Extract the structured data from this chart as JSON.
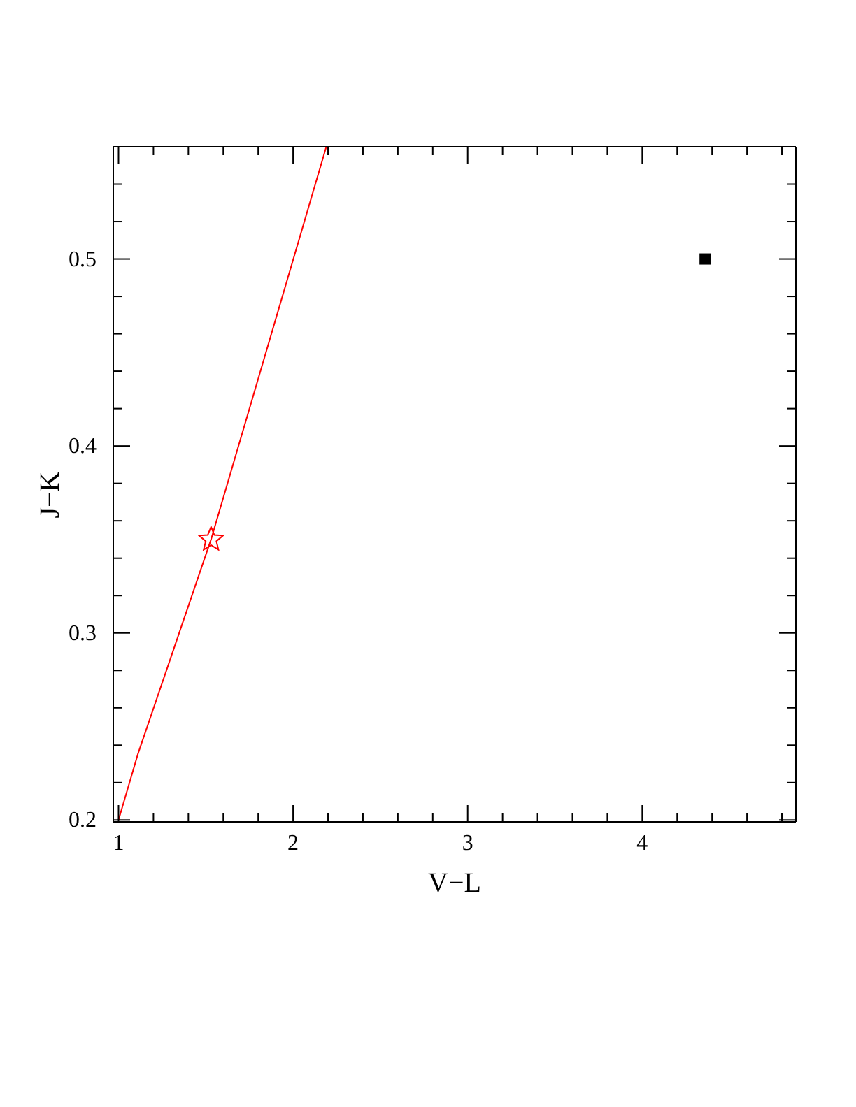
{
  "chart_data": {
    "type": "scatter",
    "xlabel": "V−L",
    "ylabel": "J−K",
    "xlim": [
      0.97,
      4.88
    ],
    "ylim": [
      0.199,
      0.56
    ],
    "xticks": [
      1,
      {
        "value": 1.2,
        "label": null
      },
      {
        "value": 1.4,
        "label": null
      },
      {
        "value": 1.6,
        "label": null
      },
      {
        "value": 1.8,
        "label": null
      },
      2,
      {
        "value": 2.2,
        "label": null
      },
      {
        "value": 2.4,
        "label": null
      },
      {
        "value": 2.6,
        "label": null
      },
      {
        "value": 2.8,
        "label": null
      },
      3,
      {
        "value": 3.2,
        "label": null
      },
      {
        "value": 3.4,
        "label": null
      },
      {
        "value": 3.6,
        "label": null
      },
      {
        "value": 3.8,
        "label": null
      },
      4,
      {
        "value": 4.2,
        "label": null
      },
      {
        "value": 4.4,
        "label": null
      },
      {
        "value": 4.6,
        "label": null
      },
      {
        "value": 4.8,
        "label": null
      }
    ],
    "yticks": [
      0.2,
      {
        "value": 0.22,
        "label": null
      },
      {
        "value": 0.24,
        "label": null
      },
      {
        "value": 0.26,
        "label": null
      },
      {
        "value": 0.28,
        "label": null
      },
      0.3,
      {
        "value": 0.32,
        "label": null
      },
      {
        "value": 0.34,
        "label": null
      },
      {
        "value": 0.36,
        "label": null
      },
      {
        "value": 0.38,
        "label": null
      },
      0.4,
      {
        "value": 0.42,
        "label": null
      },
      {
        "value": 0.44,
        "label": null
      },
      {
        "value": 0.46,
        "label": null
      },
      {
        "value": 0.48,
        "label": null
      },
      0.5,
      {
        "value": 0.52,
        "label": null
      },
      {
        "value": 0.54,
        "label": null
      }
    ],
    "legend": false,
    "series": [
      {
        "type": "line",
        "color": "#ff0000",
        "x": [
          1.0,
          1.11,
          1.53,
          2.19
        ],
        "values": [
          0.2,
          0.235,
          0.35,
          0.56
        ],
        "marker": "none",
        "line_style": "solid"
      },
      {
        "type": "scatter",
        "color": "#ff0000",
        "x": [
          1.53
        ],
        "values": [
          0.35
        ],
        "marker": "star"
      },
      {
        "type": "scatter",
        "color": "#000000",
        "x": [
          4.36
        ],
        "values": [
          0.5
        ],
        "marker": "square"
      }
    ]
  }
}
